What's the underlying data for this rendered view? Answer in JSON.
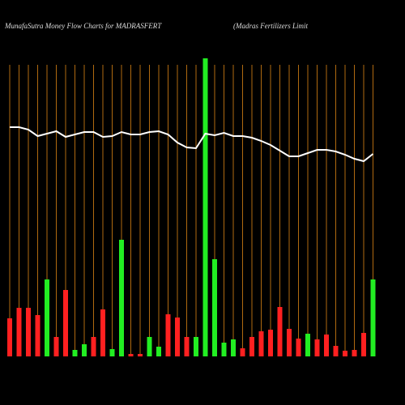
{
  "chart_data": {
    "type": "bar",
    "title": "MunafaSutra  Money Flow  Charts for MADRASFERT",
    "subtitle": "(Madras Fertilizers Limit",
    "categories": [
      null,
      null,
      null,
      null,
      null,
      null,
      null,
      null,
      null,
      null,
      null,
      null,
      null,
      null,
      null,
      null,
      null,
      null,
      null,
      null,
      null,
      null,
      null,
      null,
      null,
      null,
      null,
      null,
      null,
      null,
      null,
      null,
      null,
      null,
      null,
      null,
      null,
      null,
      null,
      null
    ],
    "values": [
      47,
      60,
      60,
      51,
      95,
      24,
      82,
      8,
      15,
      24,
      58,
      9,
      144,
      3,
      3,
      24,
      12,
      52,
      48,
      24,
      24,
      368,
      120,
      17,
      21,
      10,
      24,
      31,
      33,
      61,
      34,
      22,
      28,
      21,
      27,
      13,
      7,
      8,
      29,
      95
    ],
    "colors": [
      "#ff2020",
      "#ff2020",
      "#ff2020",
      "#ff2020",
      "#22ee22",
      "#ff2020",
      "#ff2020",
      "#22ee22",
      "#22ee22",
      "#ff2020",
      "#ff2020",
      "#22ee22",
      "#22ee22",
      "#ff2020",
      "#ff2020",
      "#22ee22",
      "#22ee22",
      "#ff2020",
      "#ff2020",
      "#ff2020",
      "#22ee22",
      "#22ee22",
      "#22ee22",
      "#22ee22",
      "#22ee22",
      "#ff2020",
      "#ff2020",
      "#ff2020",
      "#ff2020",
      "#ff2020",
      "#ff2020",
      "#ff2020",
      "#22ee22",
      "#ff2020",
      "#ff2020",
      "#ff2020",
      "#ff2020",
      "#ff2020",
      "#ff2020",
      "#22ee22"
    ],
    "line": {
      "color": "#ffffff",
      "values": [
        283,
        283,
        280,
        272,
        275,
        278,
        271,
        274,
        277,
        277,
        271,
        272,
        277,
        274,
        274,
        277,
        278,
        274,
        264,
        258,
        257,
        275,
        273,
        276,
        272,
        272,
        270,
        266,
        261,
        254,
        247,
        247,
        251,
        255,
        255,
        253,
        249,
        244,
        241,
        250
      ]
    },
    "gridline_color": "#b06a10",
    "ylim": [
      0,
      368
    ]
  }
}
